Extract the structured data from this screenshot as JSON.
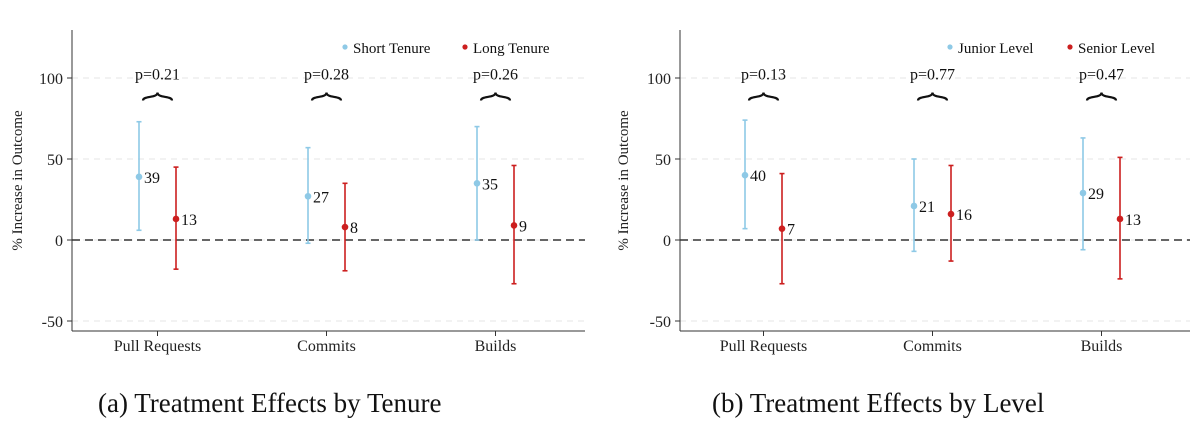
{
  "chart_data": [
    {
      "type": "errorbar",
      "caption": "(a) Treatment Effects by Tenure",
      "ylabel": "% Increase in Outcome",
      "ylim": [
        -55,
        130
      ],
      "yticks": [
        -50,
        0,
        50,
        100
      ],
      "ytick_labels": [
        "-50",
        "0",
        "50",
        "100"
      ],
      "grid": "horizontal-dashed",
      "reference_line": 0,
      "legend_position": "top-right",
      "categories": [
        "Pull Requests",
        "Commits",
        "Builds"
      ],
      "series": [
        {
          "name": "Short Tenure",
          "color": "#8ec9e6",
          "values": [
            39,
            27,
            35
          ],
          "value_labels": [
            "39",
            "27",
            "35"
          ],
          "lower": [
            6,
            -2,
            0
          ],
          "upper": [
            73,
            57,
            70
          ]
        },
        {
          "name": "Long Tenure",
          "color": "#cc1f1f",
          "values": [
            13,
            8,
            9
          ],
          "value_labels": [
            "13",
            "8",
            "9"
          ],
          "lower": [
            -18,
            -19,
            -27
          ],
          "upper": [
            45,
            35,
            46
          ]
        }
      ],
      "pvalues": [
        "p=0.21",
        "p=0.28",
        "p=0.26"
      ]
    },
    {
      "type": "errorbar",
      "caption": "(b) Treatment Effects by Level",
      "ylabel": "% Increase in Outcome",
      "ylim": [
        -55,
        130
      ],
      "yticks": [
        -50,
        0,
        50,
        100
      ],
      "ytick_labels": [
        "-50",
        "0",
        "50",
        "100"
      ],
      "grid": "horizontal-dashed",
      "reference_line": 0,
      "legend_position": "top-right",
      "categories": [
        "Pull Requests",
        "Commits",
        "Builds"
      ],
      "series": [
        {
          "name": "Junior Level",
          "color": "#8ec9e6",
          "values": [
            40,
            21,
            29
          ],
          "value_labels": [
            "40",
            "21",
            "29"
          ],
          "lower": [
            7,
            -7,
            -6
          ],
          "upper": [
            74,
            50,
            63
          ]
        },
        {
          "name": "Senior Level",
          "color": "#cc1f1f",
          "values": [
            7,
            16,
            13
          ],
          "value_labels": [
            "7",
            "16",
            "13"
          ],
          "lower": [
            -27,
            -13,
            -24
          ],
          "upper": [
            41,
            46,
            51
          ]
        }
      ],
      "pvalues": [
        "p=0.13",
        "p=0.77",
        "p=0.47"
      ]
    }
  ]
}
